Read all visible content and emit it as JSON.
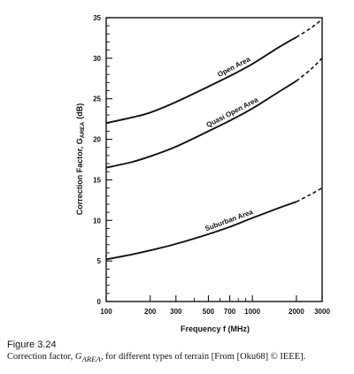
{
  "chart_data": {
    "type": "line",
    "xlabel": "Frequency f (MHz)",
    "ylabel": "Correction Factor, G",
    "ylabel_sub": "AREA",
    "ylabel_unit": "(dB)",
    "x_scale": "log",
    "xlim": [
      100,
      3000
    ],
    "ylim": [
      0,
      35
    ],
    "x_ticks": [
      100,
      200,
      300,
      500,
      700,
      1000,
      2000,
      3000
    ],
    "x_tick_labels": [
      "100",
      "200",
      "300",
      "500",
      "700",
      "1000",
      "2000",
      "3000"
    ],
    "y_ticks": [
      0,
      5,
      10,
      15,
      20,
      25,
      30,
      35
    ],
    "y_tick_labels": [
      "0",
      "5",
      "10",
      "15",
      "20",
      "25",
      "30",
      "35"
    ],
    "grid": false,
    "series": [
      {
        "name": "Open Area",
        "solid": {
          "x": [
            100,
            150,
            200,
            300,
            500,
            700,
            1000,
            1500,
            2000
          ],
          "y": [
            22.0,
            22.7,
            23.3,
            24.6,
            26.5,
            27.8,
            29.3,
            31.3,
            32.6
          ]
        },
        "dashed": {
          "x": [
            2000,
            2500,
            3000
          ],
          "y": [
            32.6,
            33.7,
            34.8
          ]
        }
      },
      {
        "name": "Quasi Open Area",
        "solid": {
          "x": [
            100,
            150,
            200,
            300,
            500,
            700,
            1000,
            1500,
            2000
          ],
          "y": [
            16.5,
            17.2,
            17.9,
            19.1,
            21.0,
            22.3,
            23.8,
            25.8,
            27.2
          ]
        },
        "dashed": {
          "x": [
            2000,
            2500,
            3000
          ],
          "y": [
            27.2,
            28.6,
            30.0
          ]
        }
      },
      {
        "name": "Suburban Area",
        "solid": {
          "x": [
            100,
            150,
            200,
            300,
            500,
            700,
            1000,
            1500,
            2000
          ],
          "y": [
            5.2,
            5.8,
            6.3,
            7.1,
            8.3,
            9.2,
            10.3,
            11.5,
            12.3
          ]
        },
        "dashed": {
          "x": [
            2000,
            2500,
            3000
          ],
          "y": [
            12.3,
            13.2,
            14.0
          ]
        }
      }
    ]
  },
  "caption": {
    "figure_label": "Figure 3.24",
    "text_before": "Correction factor, ",
    "symbol": "G",
    "symbol_sub": "AREA",
    "text_after": ", for different types of terrain [From [Oku68] © IEEE]."
  }
}
